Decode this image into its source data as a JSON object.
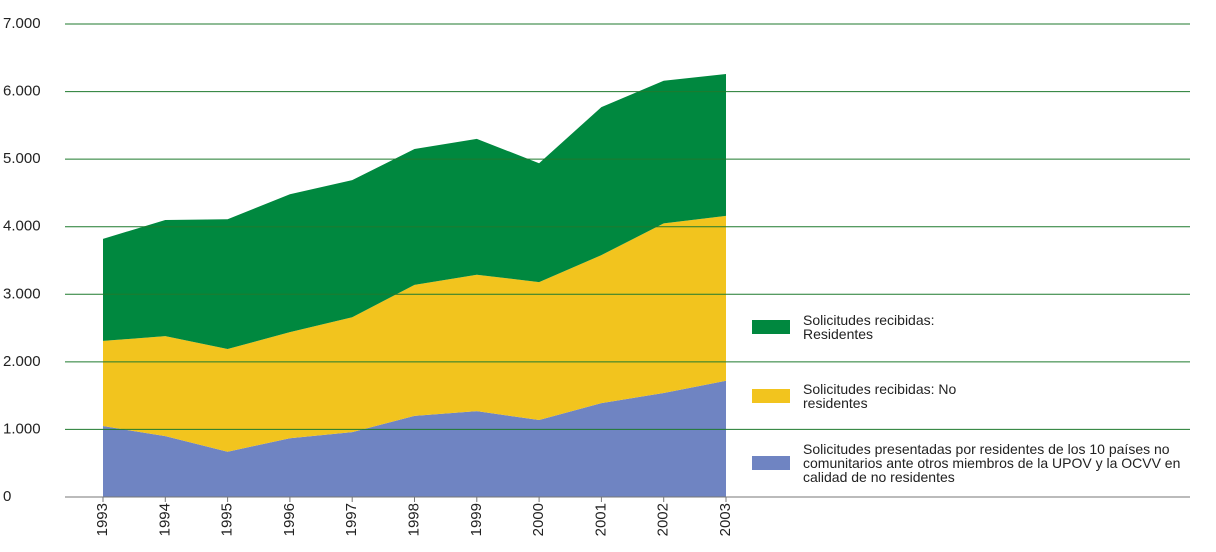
{
  "chart_data": {
    "type": "stacked_area",
    "categories": [
      "1993",
      "1994",
      "1995",
      "1996",
      "1997",
      "1998",
      "1999",
      "2000",
      "2001",
      "2002",
      "2003"
    ],
    "series": [
      {
        "name": "Solicitudes presentadas por residentes de los 10 países no comunitarios ante otros miembros de la UPOV y la OCVV en calidad de no residentes",
        "color": "#6f84c2",
        "values": [
          1050,
          900,
          670,
          870,
          960,
          1200,
          1270,
          1140,
          1390,
          1540,
          1720
        ]
      },
      {
        "name": "Solicitudes recibidas: No residentes",
        "color": "#f2c41e",
        "values": [
          1260,
          1480,
          1520,
          1570,
          1700,
          1940,
          2020,
          2040,
          2190,
          2510,
          2440
        ]
      },
      {
        "name": "Solicitudes recibidas: Residentes",
        "color": "#00883f",
        "values": [
          1510,
          1720,
          1920,
          2040,
          2030,
          2010,
          2010,
          1760,
          2190,
          2110,
          2100
        ]
      }
    ],
    "ylim": [
      0,
      7000
    ],
    "yticks": [
      0,
      {
        "value": 1000,
        "label": "1.000"
      },
      {
        "value": 2000,
        "label": "2.000"
      },
      {
        "value": 3000,
        "label": "3.000"
      },
      {
        "value": 4000,
        "label": "4.000"
      },
      {
        "value": 5000,
        "label": "5.000"
      },
      {
        "value": 6000,
        "label": "6.000"
      },
      {
        "value": 7000,
        "label": "7.000"
      }
    ],
    "grid": true,
    "legend": "right"
  }
}
